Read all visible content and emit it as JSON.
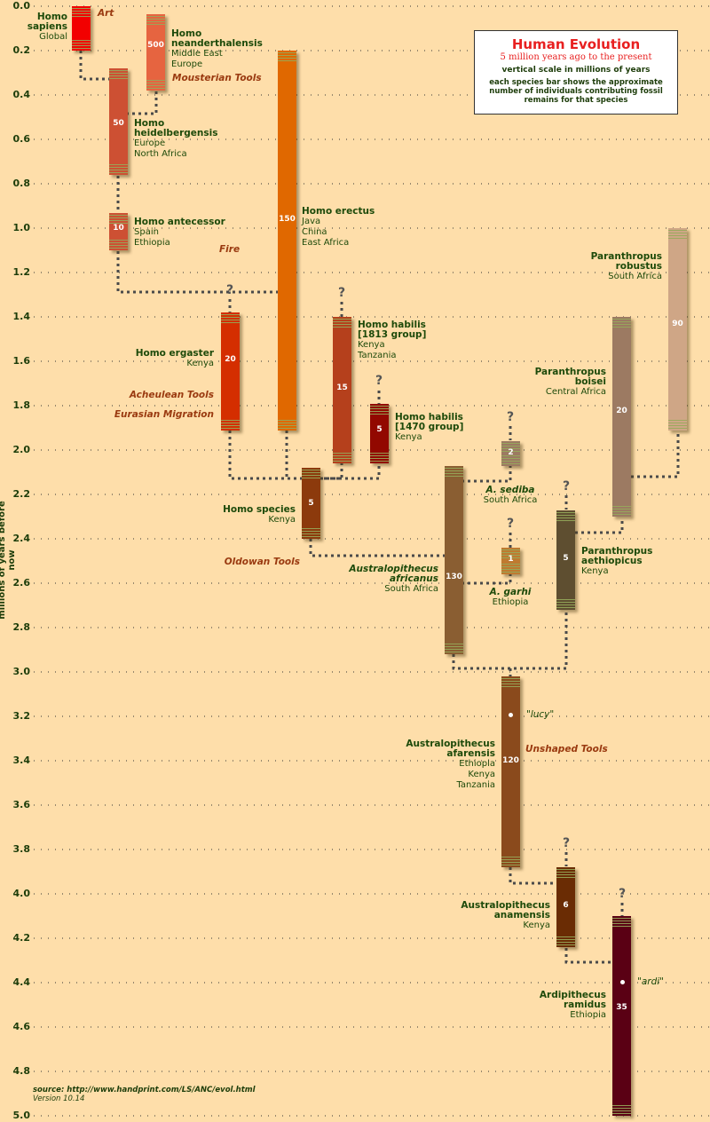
{
  "title": "Human Evolution",
  "subtitle": "5 million years ago to the present",
  "scale_note": "vertical scale in millions of years",
  "bar_note": "each species bar shows the approximate number of individuals contributing fossil remains for that species",
  "y_axis": {
    "label": "millions of years before now",
    "ticks": [
      "0.0",
      "0.2",
      "0.4",
      "0.6",
      "0.8",
      "1.0",
      "1.2",
      "1.4",
      "1.6",
      "1.8",
      "2.0",
      "2.2",
      "2.4",
      "2.6",
      "2.8",
      "3.0",
      "3.2",
      "3.4",
      "3.6",
      "3.8",
      "4.0",
      "4.2",
      "4.4",
      "4.6",
      "4.8",
      "5.0"
    ],
    "range": [
      0,
      5
    ]
  },
  "species": [
    {
      "name1": "Homo",
      "name2": "sapiens",
      "regions": [
        "Global"
      ],
      "start": 0.2,
      "end": 0.0,
      "count": "",
      "color": "#f20000"
    },
    {
      "name1": "Homo",
      "name2": "neanderthalensis",
      "regions": [
        "Middle East",
        "Europe"
      ],
      "start": 0.38,
      "end": 0.036,
      "count": "500",
      "color": "#e66440"
    },
    {
      "name1": "Homo",
      "name2": "heidelbergensis",
      "regions": [
        "Europe",
        "North Africa"
      ],
      "start": 0.76,
      "end": 0.28,
      "count": "50",
      "color": "#cd5033"
    },
    {
      "name1": "Homo antecessor",
      "regions": [
        "Spain",
        "Ethiopia"
      ],
      "start": 1.1,
      "end": 0.93,
      "count": "10",
      "color": "#cd5033"
    },
    {
      "name1": "Homo erectus",
      "regions": [
        "Java",
        "China",
        "East Africa"
      ],
      "start": 1.91,
      "end": 0.2,
      "count": "150",
      "color": "#e06800"
    },
    {
      "name1": "Homo ergaster",
      "regions": [
        "Kenya"
      ],
      "start": 1.91,
      "end": 1.38,
      "count": "20",
      "color": "#d42e00"
    },
    {
      "name1": "Homo habilis",
      "name2": "[1813 group]",
      "regions": [
        "Kenya",
        "Tanzania"
      ],
      "start": 2.06,
      "end": 1.4,
      "count": "15",
      "color": "#b5401c"
    },
    {
      "name1": "Homo habilis",
      "name2": "[1470 group]",
      "regions": [
        "Kenya"
      ],
      "start": 2.06,
      "end": 1.79,
      "count": "5",
      "color": "#920800"
    },
    {
      "name1": "Homo species",
      "regions": [
        "Kenya"
      ],
      "start": 2.4,
      "end": 2.08,
      "count": "5",
      "color": "#8c3a0c"
    },
    {
      "name1": "A. sediba",
      "regions": [
        "South Africa"
      ],
      "start": 2.07,
      "end": 1.96,
      "count": "2",
      "color": "#9c7a62"
    },
    {
      "name1": "A. garhi",
      "regions": [
        "Ethiopia"
      ],
      "start": 2.56,
      "end": 2.44,
      "count": "1",
      "color": "#bf7a30"
    },
    {
      "name1": "Australopithecus",
      "name2": "africanus",
      "regions": [
        "South Africa"
      ],
      "start": 2.92,
      "end": 2.07,
      "count": "130",
      "color": "#8a5e32"
    },
    {
      "name1": "Paranthropus",
      "name2": "aethiopicus",
      "regions": [
        "Kenya"
      ],
      "start": 2.72,
      "end": 2.27,
      "count": "5",
      "color": "#5e4e30"
    },
    {
      "name1": "Paranthropus",
      "name2": "boisei",
      "regions": [
        "Central Africa"
      ],
      "start": 2.3,
      "end": 1.4,
      "count": "20",
      "color": "#9c7a62"
    },
    {
      "name1": "Paranthropus",
      "name2": "robustus",
      "regions": [
        "South Africa"
      ],
      "start": 1.91,
      "end": 1.0,
      "count": "90",
      "color": "#cfa686"
    },
    {
      "name1": "Australopithecus",
      "name2": "afarensis",
      "regions": [
        "Ethiopia",
        "Kenya",
        "Tanzania"
      ],
      "start": 3.88,
      "end": 3.02,
      "count": "120",
      "color": "#8a4a1c",
      "specimen": "\"lucy\""
    },
    {
      "name1": "Australopithecus",
      "name2": "anamensis",
      "regions": [
        "Kenya"
      ],
      "start": 4.24,
      "end": 3.88,
      "count": "6",
      "color": "#6a2c04"
    },
    {
      "name1": "Ardipithecus",
      "name2": "ramidus",
      "regions": [
        "Ethiopia"
      ],
      "start": 5.0,
      "end": 4.1,
      "count": "35",
      "color": "#5a0014",
      "specimen": "\"ardi\""
    }
  ],
  "tools": {
    "art": "Art",
    "mousterian": "Mousterian Tools",
    "fire": "Fire",
    "acheulean": "Acheulean Tools",
    "migration": "Eurasian Migration",
    "oldowan": "Oldowan Tools",
    "unshaped": "Unshaped Tools"
  },
  "unknown_mark": "?",
  "source": "source: http://www.handprint.com/LS/ANC/evol.html",
  "version": "Version 10.14"
}
